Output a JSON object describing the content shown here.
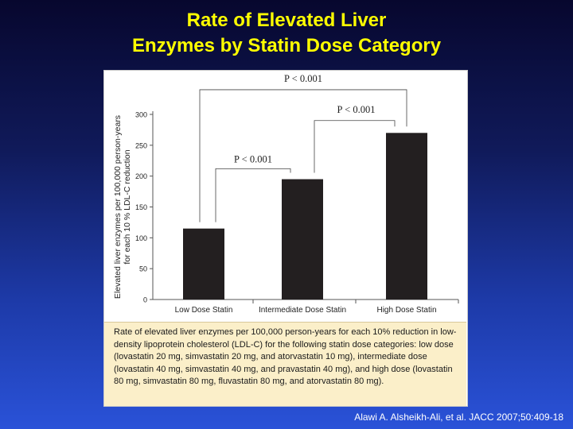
{
  "slide": {
    "title_line1": "Rate of Elevated Liver",
    "title_line2": "Enzymes by Statin Dose Category",
    "source": "Alawi A. Alsheikh-Ali, et al. JACC 2007;50:409-18"
  },
  "caption": "Rate of elevated liver enzymes per 100,000 person-years for each 10% reduction in low-density lipoprotein cholesterol (LDL-C) for the following statin dose categories: low dose (lovastatin 20 mg, simvastatin 20 mg, and atorvastatin 10 mg), intermediate dose (lovastatin 40 mg, simvastatin 40 mg, and pravastatin 40 mg), and high dose (lovastatin 80 mg, simvastatin 80 mg, fluvastatin 80 mg, and atorvastatin 80 mg).",
  "chart_data": {
    "type": "bar",
    "categories": [
      "Low Dose Statin",
      "Intermediate Dose Statin",
      "High Dose Statin"
    ],
    "values": [
      115,
      195,
      270
    ],
    "ylabel_line1": "Elevated liver enzymes per 100,000 person-years",
    "ylabel_line2": "for each 10 % LDL-C reduction",
    "ylim": [
      0,
      300
    ],
    "yticks": [
      0,
      50,
      100,
      150,
      200,
      250,
      300
    ],
    "bar_color": "#231f20",
    "annotations": [
      {
        "from": 0,
        "to": 1,
        "label": "P < 0.001"
      },
      {
        "from": 1,
        "to": 2,
        "label": "P < 0.001"
      },
      {
        "from": 0,
        "to": 2,
        "label": "P < 0.001"
      }
    ]
  }
}
